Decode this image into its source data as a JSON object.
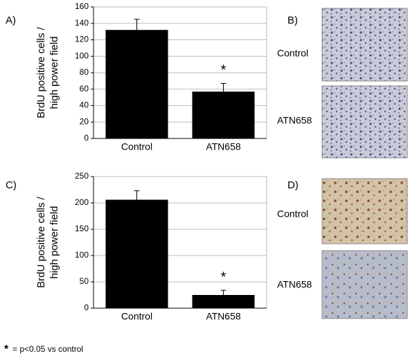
{
  "chart_data": [
    {
      "type": "bar",
      "label": "A)",
      "ylabel": [
        "BrdU positive cells /",
        "high power field"
      ],
      "categories": [
        "Control",
        "ATN658"
      ],
      "values": [
        132,
        57
      ],
      "errors": [
        13,
        10
      ],
      "value_annotations": [
        null,
        "*"
      ],
      "color": "#000000",
      "ylim": [
        0,
        160
      ],
      "yticks": [
        0,
        20,
        40,
        60,
        80,
        100,
        120,
        140,
        160
      ],
      "grid": true
    },
    {
      "type": "bar",
      "label": "C)",
      "ylabel": [
        "BrdU positive cells /",
        "high power field"
      ],
      "categories": [
        "Control",
        "ATN658"
      ],
      "values": [
        206,
        25
      ],
      "errors": [
        17,
        9
      ],
      "value_annotations": [
        null,
        "*"
      ],
      "color": "#000000",
      "ylim": [
        0,
        250
      ],
      "yticks": [
        0,
        50,
        100,
        150,
        200,
        250
      ],
      "grid": true
    }
  ],
  "panels": [
    {
      "label": "B)",
      "rows": [
        "Control",
        "ATN658"
      ]
    },
    {
      "label": "D)",
      "rows": [
        "Control",
        "ATN658"
      ]
    }
  ],
  "footnote": {
    "symbol": "*",
    "text": "= p<0.05 vs control"
  }
}
